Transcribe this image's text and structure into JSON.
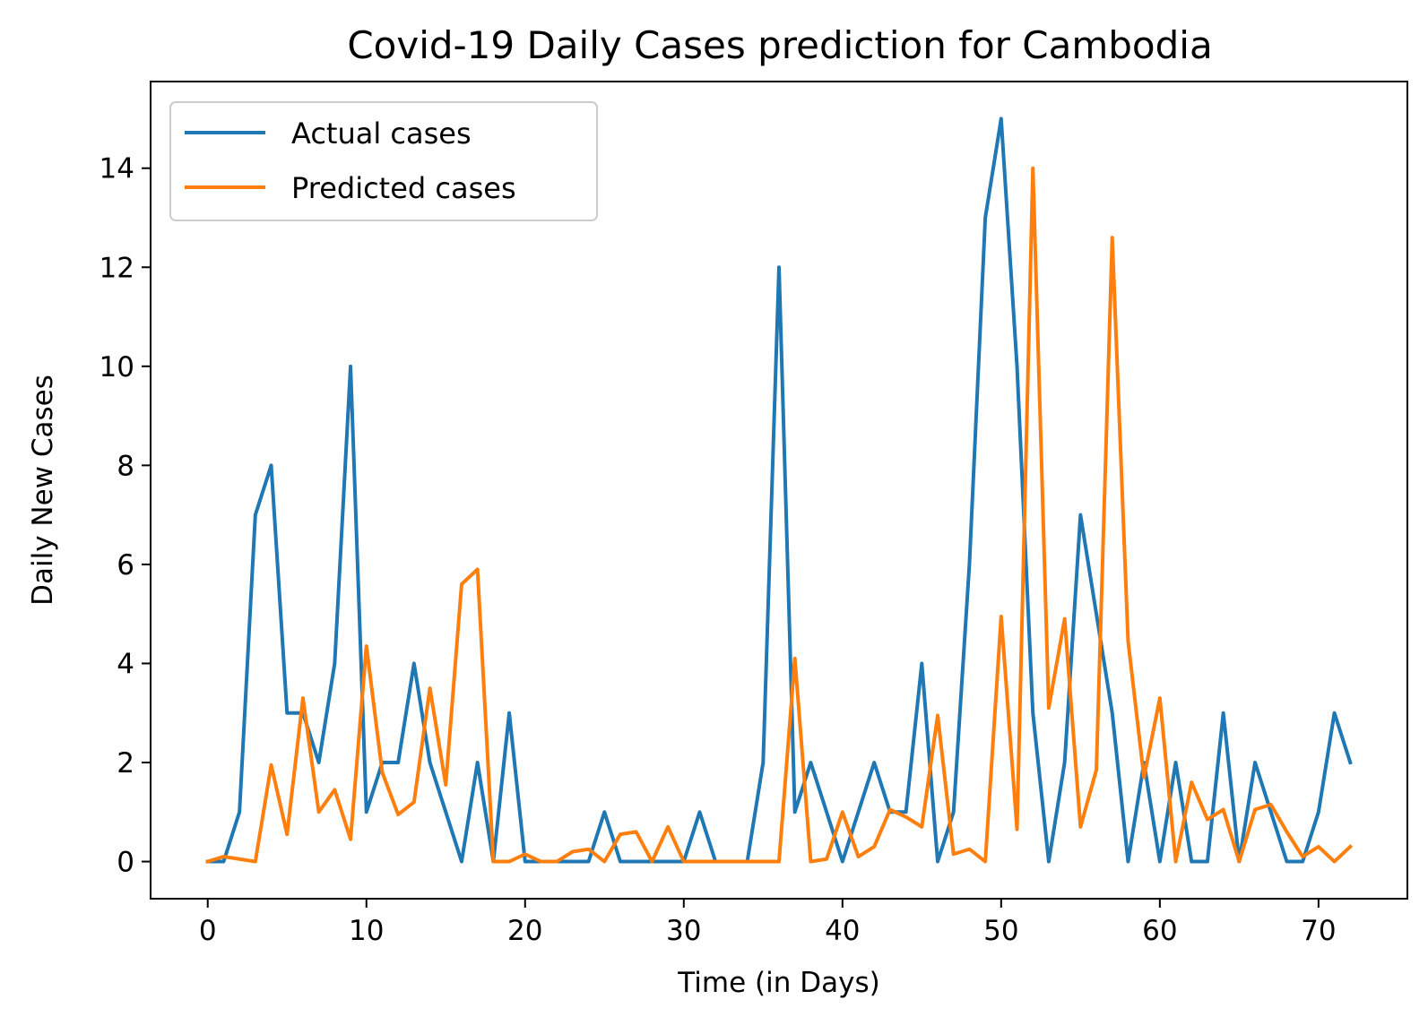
{
  "chart_data": {
    "type": "line",
    "title": "Covid-19 Daily Cases prediction for Cambodia",
    "xlabel": "Time (in Days)",
    "ylabel": "Daily New Cases",
    "xlim": [
      -3.6,
      75.6
    ],
    "ylim": [
      -0.75,
      15.75
    ],
    "xticks": [
      0,
      10,
      20,
      30,
      40,
      50,
      60,
      70
    ],
    "yticks": [
      0,
      2,
      4,
      6,
      8,
      10,
      12,
      14
    ],
    "grid": false,
    "legend_position": "top-left",
    "series": [
      {
        "name": "Actual cases",
        "color": "#1f77b4",
        "values": [
          0,
          0,
          1,
          7,
          8,
          3,
          3,
          2,
          4,
          10,
          1,
          2,
          2,
          4,
          2,
          1,
          0,
          2,
          0,
          3,
          0,
          0,
          0,
          0,
          0,
          1,
          0,
          0,
          0,
          0,
          0,
          1,
          0,
          0,
          0,
          2,
          12,
          1,
          2,
          1,
          0,
          1,
          2,
          1,
          1,
          4,
          0,
          1,
          6,
          13,
          15,
          10,
          3,
          0,
          2,
          7,
          5,
          3,
          0,
          2,
          0,
          2,
          0,
          0,
          3,
          0,
          2,
          1,
          0,
          0,
          1,
          3,
          2
        ]
      },
      {
        "name": "Predicted cases",
        "color": "#ff7f0e",
        "values": [
          0,
          0.1,
          0.05,
          0,
          1.95,
          0.55,
          3.3,
          1.0,
          1.45,
          0.45,
          4.35,
          1.8,
          0.95,
          1.2,
          3.5,
          1.55,
          5.6,
          5.9,
          0,
          0,
          0.15,
          0,
          0,
          0.2,
          0.25,
          0,
          0.55,
          0.6,
          0,
          0.7,
          0,
          0,
          0,
          0,
          0,
          0,
          0,
          4.1,
          0,
          0.05,
          1.0,
          0.1,
          0.3,
          1.05,
          0.9,
          0.7,
          2.95,
          0.15,
          0.25,
          0,
          4.95,
          0.65,
          14.0,
          3.1,
          4.9,
          0.7,
          1.85,
          12.6,
          4.45,
          1.7,
          3.3,
          0,
          1.6,
          0.85,
          1.05,
          0,
          1.05,
          1.15,
          0.6,
          0.1,
          0.3,
          0,
          0.3
        ]
      }
    ]
  }
}
